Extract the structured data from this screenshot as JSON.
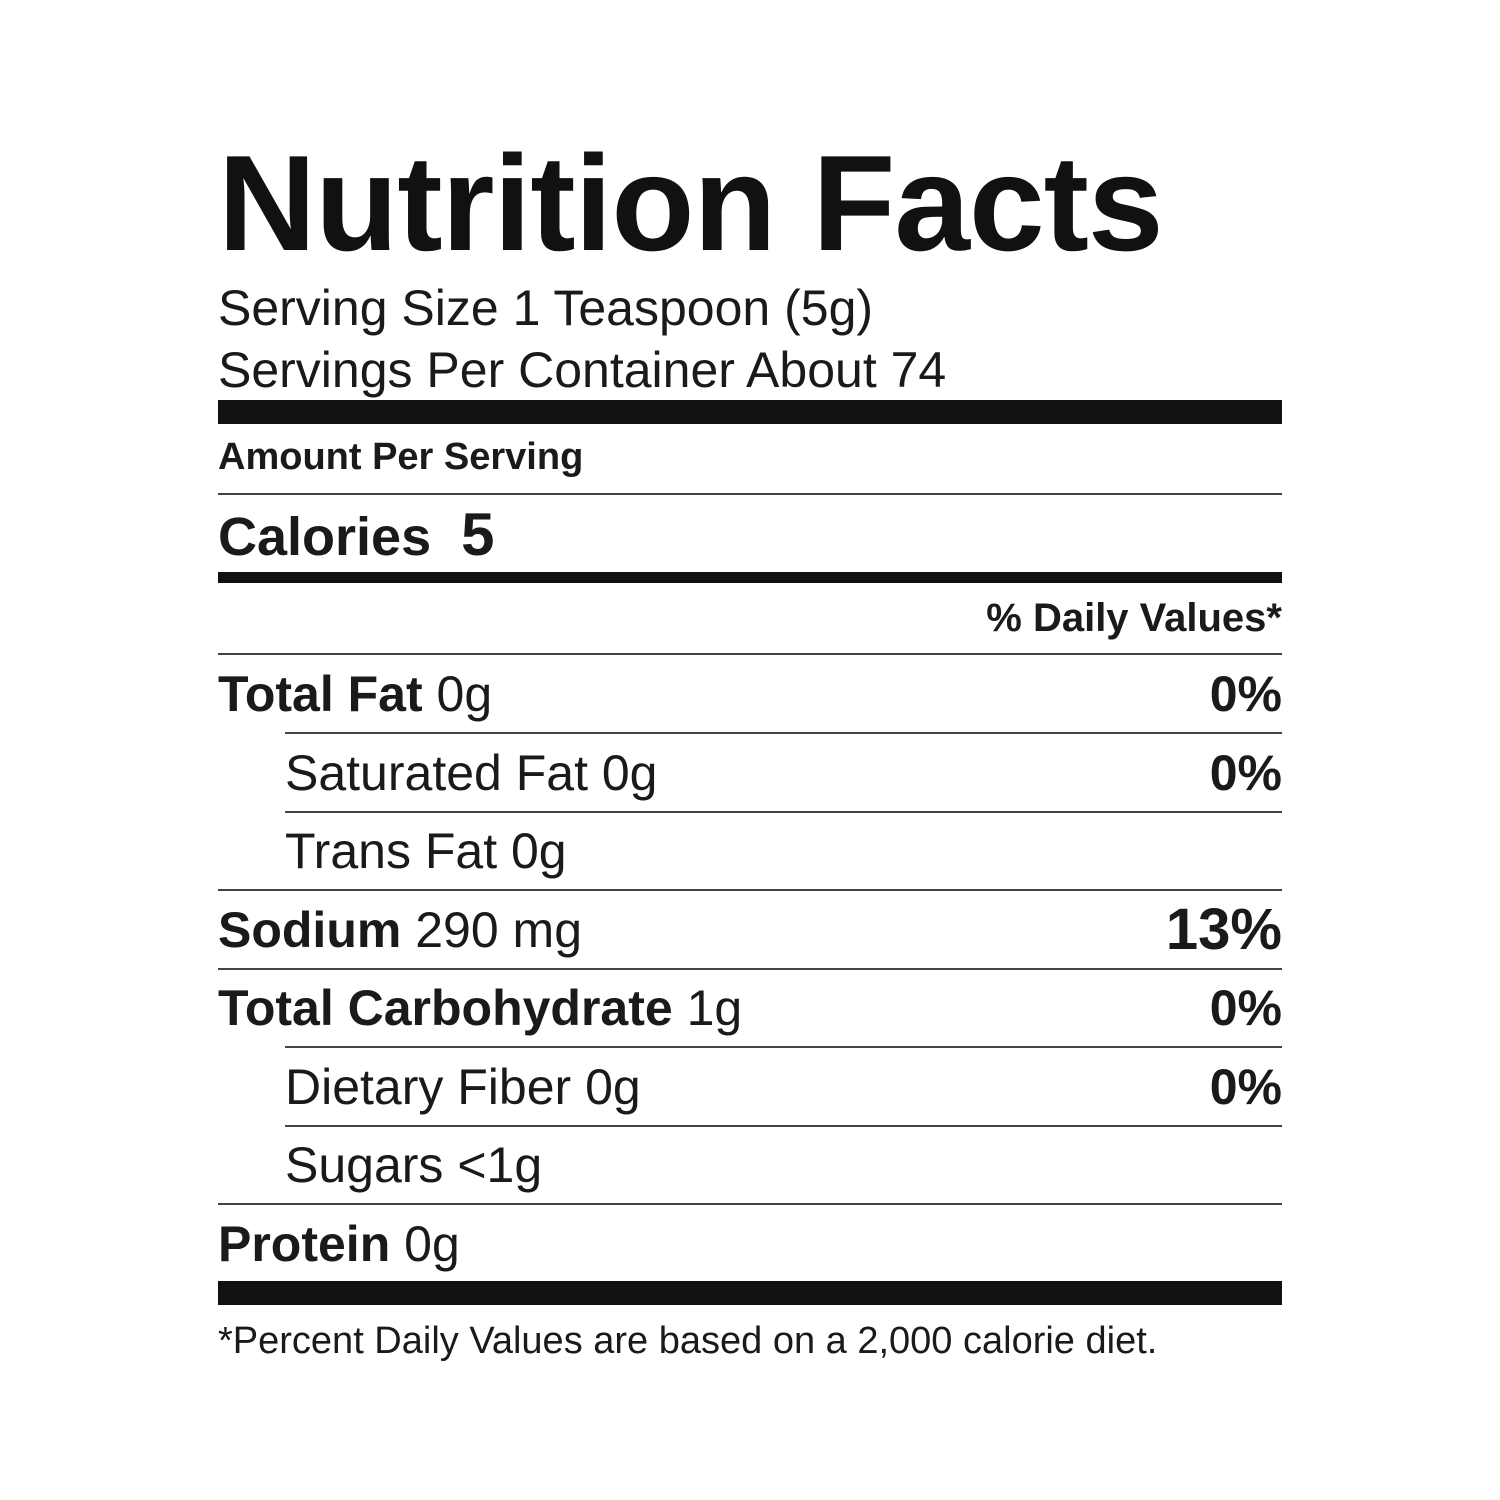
{
  "title": "Nutrition Facts",
  "serving_size": "Serving Size 1 Teaspoon (5g)",
  "servings_per_container": "Servings Per Container About 74",
  "amount_per_serving": "Amount Per Serving",
  "calories_label": "Calories",
  "calories_value": "5",
  "daily_values_header": "% Daily Values*",
  "rows": [
    {
      "label": "Total Fat",
      "amount": "0g",
      "dv": "0%"
    },
    {
      "label": "Saturated Fat",
      "amount": "0g",
      "dv": "0%"
    },
    {
      "label": "Trans Fat",
      "amount": "0g",
      "dv": ""
    },
    {
      "label": "Sodium",
      "amount": "290 mg",
      "dv": "13%"
    },
    {
      "label": "Total Carbohydrate",
      "amount": "1g",
      "dv": "0%"
    },
    {
      "label": "Dietary Fiber",
      "amount": "0g",
      "dv": "0%"
    },
    {
      "label": "Sugars",
      "amount": "<1g",
      "dv": ""
    },
    {
      "label": "Protein",
      "amount": "0g",
      "dv": ""
    }
  ],
  "footnote": "*Percent Daily Values are based on a 2,000 calorie diet."
}
